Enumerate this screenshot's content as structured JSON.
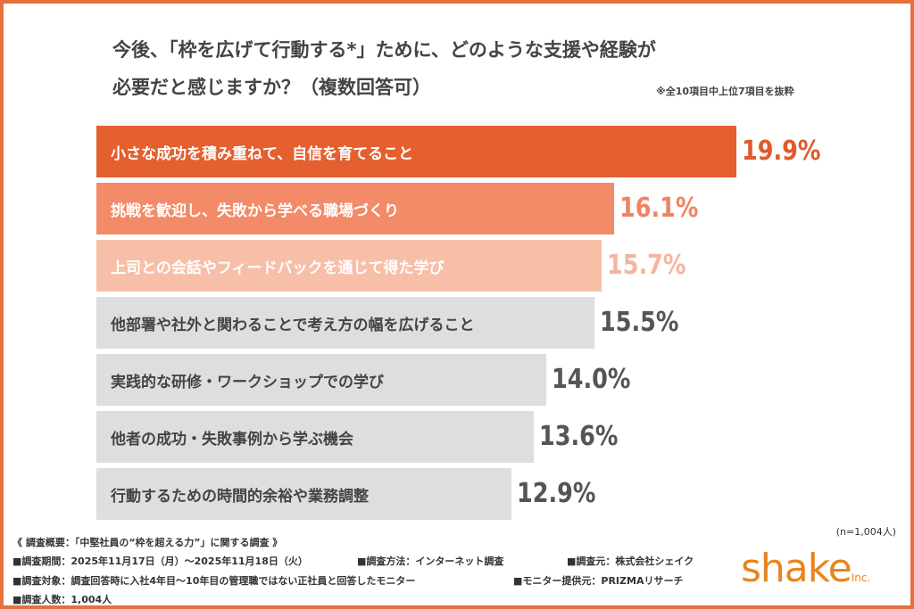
{
  "chart_data": {
    "type": "bar",
    "orientation": "horizontal",
    "title": "今後、「枠を広げて行動する*」ために、どのような支援や経験が必要だと感じますか？（複数回答可）",
    "title_lines": [
      "今後、「枠を広げて行動する*」ために、どのような支援や経験が",
      "必要だと感じますか？（複数回答可）"
    ],
    "note": "※全10項目中上位7項目を抜粋",
    "categories": [
      "小さな成功を積み重ねて、自信を育てること",
      "挑戦を歓迎し、失敗から学べる職場づくり",
      "上司との会話やフィードバックを通じて得た学び",
      "他部署や社外と関わることで考え方の幅を広げること",
      "実践的な研修・ワークショップでの学び",
      "他者の成功・失敗事例から学ぶ機会",
      "行動するための時間的余裕や業務調整"
    ],
    "values": [
      19.9,
      16.1,
      15.7,
      15.5,
      14.0,
      13.6,
      12.9
    ],
    "value_labels": [
      "19.9%",
      "16.1%",
      "15.7%",
      "15.5%",
      "14.0%",
      "13.6%",
      "12.9%"
    ],
    "bar_colors": [
      "#E4602F",
      "#F38A68",
      "#F8BFA8",
      "#DEDEDE",
      "#DEDEDE",
      "#DEDEDE",
      "#DEDEDE"
    ],
    "label_colors": [
      "#E05A2B",
      "#F08462",
      "#F5B59D",
      "#555555",
      "#555555",
      "#555555",
      "#555555"
    ],
    "text_colors": [
      "#ffffff",
      "#ffffff",
      "#ffffff",
      "#444444",
      "#444444",
      "#444444",
      "#444444"
    ],
    "xlim": [
      0,
      19.9
    ],
    "grid": false
  },
  "sample": "(n=1,004人)",
  "footer": [
    "《 調査概要：「中堅社員の“枠を超える力”」に関する調査 》",
    "■調査期間：2025年11月17日（月）～2025年11月18日（火）",
    "■調査方法：インターネット調査",
    "■調査元：株式会社シェイク",
    "■調査対象：調査回答時に入社4年目～10年目の管理職ではない正社員と回答したモニター",
    "■モニター提供元：PRIZMAリサーチ",
    "■調査人数：1,004人"
  ],
  "logo": {
    "text": "shake",
    "suffix": "Inc.",
    "color": "#E8841E"
  }
}
